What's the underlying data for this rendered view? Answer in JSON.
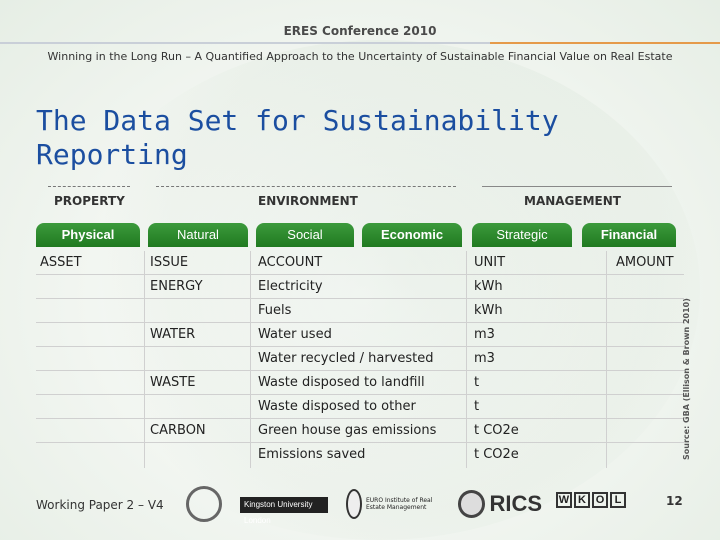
{
  "header": {
    "conference": "ERES Conference 2010",
    "subtitle": "Winning in the Long Run – A Quantified Approach to the Uncertainty of Sustainable Financial Value on Real Estate"
  },
  "title": "The Data Set for Sustainability Reporting",
  "categories": {
    "property": "PROPERTY",
    "environment": "ENVIRONMENT",
    "management": "MANAGEMENT"
  },
  "tabs": [
    "Physical",
    "Natural",
    "Social",
    "Economic",
    "Strategic",
    "Financial"
  ],
  "table": {
    "headers": {
      "asset": "ASSET",
      "issue": "ISSUE",
      "account": "ACCOUNT",
      "unit": "UNIT",
      "amount": "AMOUNT"
    },
    "rows": [
      {
        "issue": "ENERGY",
        "account": "Electricity",
        "unit": "kWh"
      },
      {
        "issue": "",
        "account": "Fuels",
        "unit": "kWh"
      },
      {
        "issue": "WATER",
        "account": "Water used",
        "unit": "m3"
      },
      {
        "issue": "",
        "account": "Water recycled / harvested",
        "unit": "m3"
      },
      {
        "issue": "WASTE",
        "account": "Waste disposed to landfill",
        "unit": "t"
      },
      {
        "issue": "",
        "account": "Waste disposed to other",
        "unit": "t"
      },
      {
        "issue": "CARBON",
        "account": "Green house gas emissions",
        "unit": "t CO2e"
      },
      {
        "issue": "",
        "account": "Emissions saved",
        "unit": "t CO2e"
      }
    ]
  },
  "source": "Source: GBA (Ellison & Brown 2010)",
  "footer": {
    "working_paper": "Working Paper 2 – V4",
    "page_number": "12"
  },
  "logos": {
    "kingston": "Kingston University London",
    "euro": "EURO Institute of Real Estate Management",
    "rics": "RICS",
    "wkol_letters": [
      "W",
      "K",
      "O",
      "L"
    ]
  },
  "colors": {
    "title": "#1b4ea0",
    "tab": "#2a8a2a",
    "accent_rule": "#e59a4a"
  }
}
